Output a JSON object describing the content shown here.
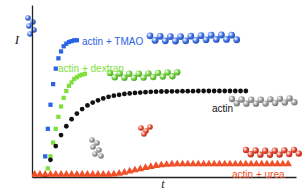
{
  "chart_data": {
    "type": "scatter",
    "x_label": "t",
    "y_label": "I",
    "xlim": [
      0,
      100
    ],
    "ylim": [
      0,
      100
    ],
    "xticks": [],
    "yticks": [],
    "tick_labels": false,
    "grid": false,
    "series": [
      {
        "name": "actin + TMAO",
        "color": "#2b63e6",
        "marker": "square",
        "x": [
          4,
          5,
          6,
          7,
          8,
          9,
          10,
          11,
          12,
          13,
          14,
          15,
          16,
          17
        ],
        "values": [
          0,
          12,
          28,
          42,
          54,
          63,
          69,
          73,
          76,
          77.5,
          78.5,
          79,
          79.5,
          79.5
        ]
      },
      {
        "name": "actin + dextran",
        "color": "#7ee03a",
        "marker": "square",
        "x": [
          5,
          6,
          7,
          8,
          9,
          10,
          11,
          12,
          13,
          14,
          15,
          16,
          17,
          18,
          19,
          20
        ],
        "values": [
          0,
          5,
          12,
          20,
          28,
          35,
          41,
          46,
          50,
          53,
          55,
          57,
          58,
          59,
          59.5,
          60
        ]
      },
      {
        "name": "actin",
        "color": "#111111",
        "marker": "circle",
        "x": [
          5,
          7,
          9,
          11,
          13,
          15,
          17,
          19,
          21,
          23,
          25,
          27,
          29,
          31,
          33,
          35,
          37,
          39,
          41,
          43,
          45,
          47,
          49,
          51,
          53,
          55,
          57,
          59,
          61,
          63,
          65,
          67,
          69,
          71,
          73,
          75,
          77,
          79,
          81
        ],
        "values": [
          0,
          10,
          18,
          24.4,
          29.5,
          33.6,
          36.9,
          39.5,
          41.6,
          43.3,
          44.6,
          45.7,
          46.6,
          47.3,
          47.8,
          48.3,
          48.6,
          48.9,
          49.1,
          49.3,
          49.5,
          49.6,
          49.7,
          49.7,
          49.8,
          49.8,
          49.9,
          49.9,
          49.9,
          50,
          50,
          50,
          50,
          50,
          50,
          50,
          50,
          50,
          50
        ]
      },
      {
        "name": "actin + urea",
        "color": "#f0502a",
        "marker": "triangle",
        "x": [
          1,
          3,
          5,
          7,
          9,
          11,
          13,
          15,
          17,
          19,
          21,
          23,
          25,
          27,
          29,
          31,
          33,
          35,
          37,
          39,
          41,
          43,
          45,
          47,
          49,
          51,
          53,
          55,
          57,
          59,
          61,
          63,
          65,
          67,
          69,
          71,
          73,
          75,
          77,
          79,
          81,
          83,
          85,
          87,
          89,
          91,
          93,
          95,
          97
        ],
        "values": [
          1.5,
          1.5,
          1.5,
          1.5,
          1.5,
          1.5,
          1.5,
          1.5,
          1.5,
          1.5,
          1.5,
          1.5,
          1.5,
          1.5,
          1.5,
          1.6,
          2,
          2.6,
          3.3,
          4,
          4.7,
          5.4,
          6,
          6.5,
          6.9,
          7.2,
          7.4,
          7.5,
          7.5,
          7.5,
          7.5,
          7.5,
          7.5,
          7.5,
          7.5,
          7.5,
          7.5,
          7.5,
          7.5,
          7.5,
          7.5,
          7.5,
          7.5,
          7.5,
          7.5,
          7.5,
          7.5,
          7.5,
          7.5
        ]
      }
    ]
  }
}
